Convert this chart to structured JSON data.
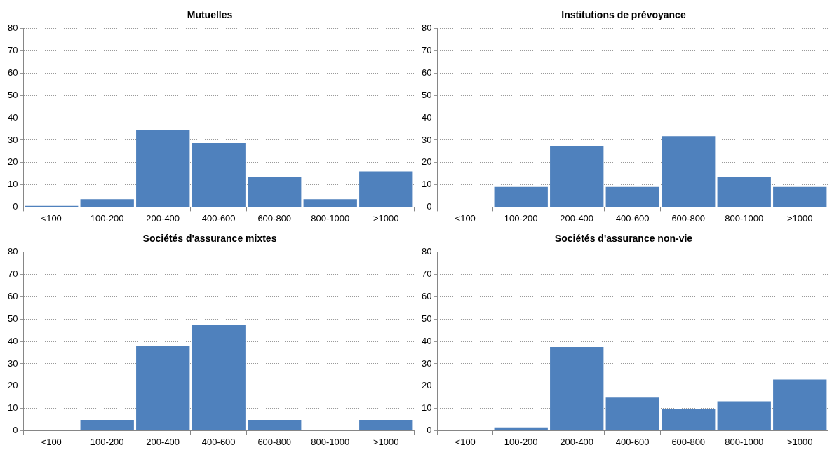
{
  "chart_data": [
    {
      "type": "bar",
      "title": "Mutuelles",
      "categories": [
        "<100",
        "100-200",
        "200-400",
        "400-600",
        "600-800",
        "800-1000",
        ">1000"
      ],
      "values": [
        0.5,
        3.5,
        34.5,
        28.7,
        13.5,
        3.5,
        16
      ],
      "color": "#4f81bd",
      "ylim": [
        0,
        80
      ],
      "yticks": [
        0,
        10,
        20,
        30,
        40,
        50,
        60,
        70,
        80
      ],
      "grid": "y",
      "legend": false
    },
    {
      "type": "bar",
      "title": "Institutions de prévoyance",
      "categories": [
        "<100",
        "100-200",
        "200-400",
        "400-600",
        "600-800",
        "800-1000",
        ">1000"
      ],
      "values": [
        0,
        9,
        27.3,
        9,
        31.8,
        13.6,
        9
      ],
      "color": "#4f81bd",
      "ylim": [
        0,
        80
      ],
      "yticks": [
        0,
        10,
        20,
        30,
        40,
        50,
        60,
        70,
        80
      ],
      "grid": "y",
      "legend": false
    },
    {
      "type": "bar",
      "title": "Sociétés d'assurance mixtes",
      "categories": [
        "<100",
        "100-200",
        "200-400",
        "400-600",
        "600-800",
        "800-1000",
        ">1000"
      ],
      "values": [
        0,
        4.8,
        38.1,
        47.6,
        4.8,
        0,
        4.8
      ],
      "color": "#4f81bd",
      "ylim": [
        0,
        80
      ],
      "yticks": [
        0,
        10,
        20,
        30,
        40,
        50,
        60,
        70,
        80
      ],
      "grid": "y",
      "legend": false
    },
    {
      "type": "bar",
      "title": "Sociétés d'assurance non-vie",
      "categories": [
        "<100",
        "100-200",
        "200-400",
        "400-600",
        "600-800",
        "800-1000",
        ">1000"
      ],
      "values": [
        0,
        1.5,
        37.5,
        14.8,
        9.8,
        13.2,
        22.9
      ],
      "color": "#4f81bd",
      "ylim": [
        0,
        80
      ],
      "yticks": [
        0,
        10,
        20,
        30,
        40,
        50,
        60,
        70,
        80
      ],
      "grid": "y",
      "legend": false
    }
  ]
}
